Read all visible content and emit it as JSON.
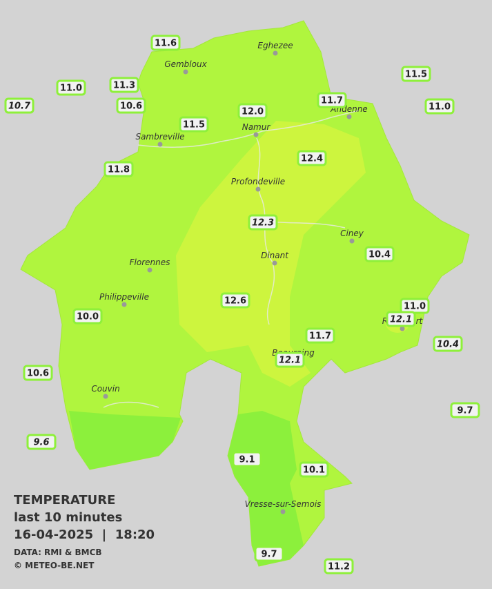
{
  "legend": {
    "title": "TEMPERATURE",
    "subtitle": "last 10 minutes",
    "datetime": "16-04-2025  |  18:20",
    "source": "DATA: RMI & BMCB",
    "credit": "© METEO-BE.NET"
  },
  "cities": [
    "Eghezee",
    "Gembloux",
    "Andenne",
    "Namur",
    "Sambreville",
    "Profondeville",
    "Ciney",
    "Dinant",
    "Florennes",
    "Philippeville",
    "Rochefort",
    "Beauraing",
    "Couvin",
    "Vresse-sur-Semois"
  ],
  "stations": [
    "11.6",
    "11.0",
    "11.3",
    "10.7",
    "10.6",
    "11.5",
    "12.0",
    "11.7",
    "11.5",
    "11.0",
    "11.8",
    "12.4",
    "12.3",
    "10.4",
    "12.6",
    "10.0",
    "11.0",
    "12.1",
    "11.7",
    "10.4",
    "12.1",
    "10.6",
    "9.7",
    "9.6",
    "9.1",
    "10.1",
    "9.7",
    "11.2"
  ]
}
